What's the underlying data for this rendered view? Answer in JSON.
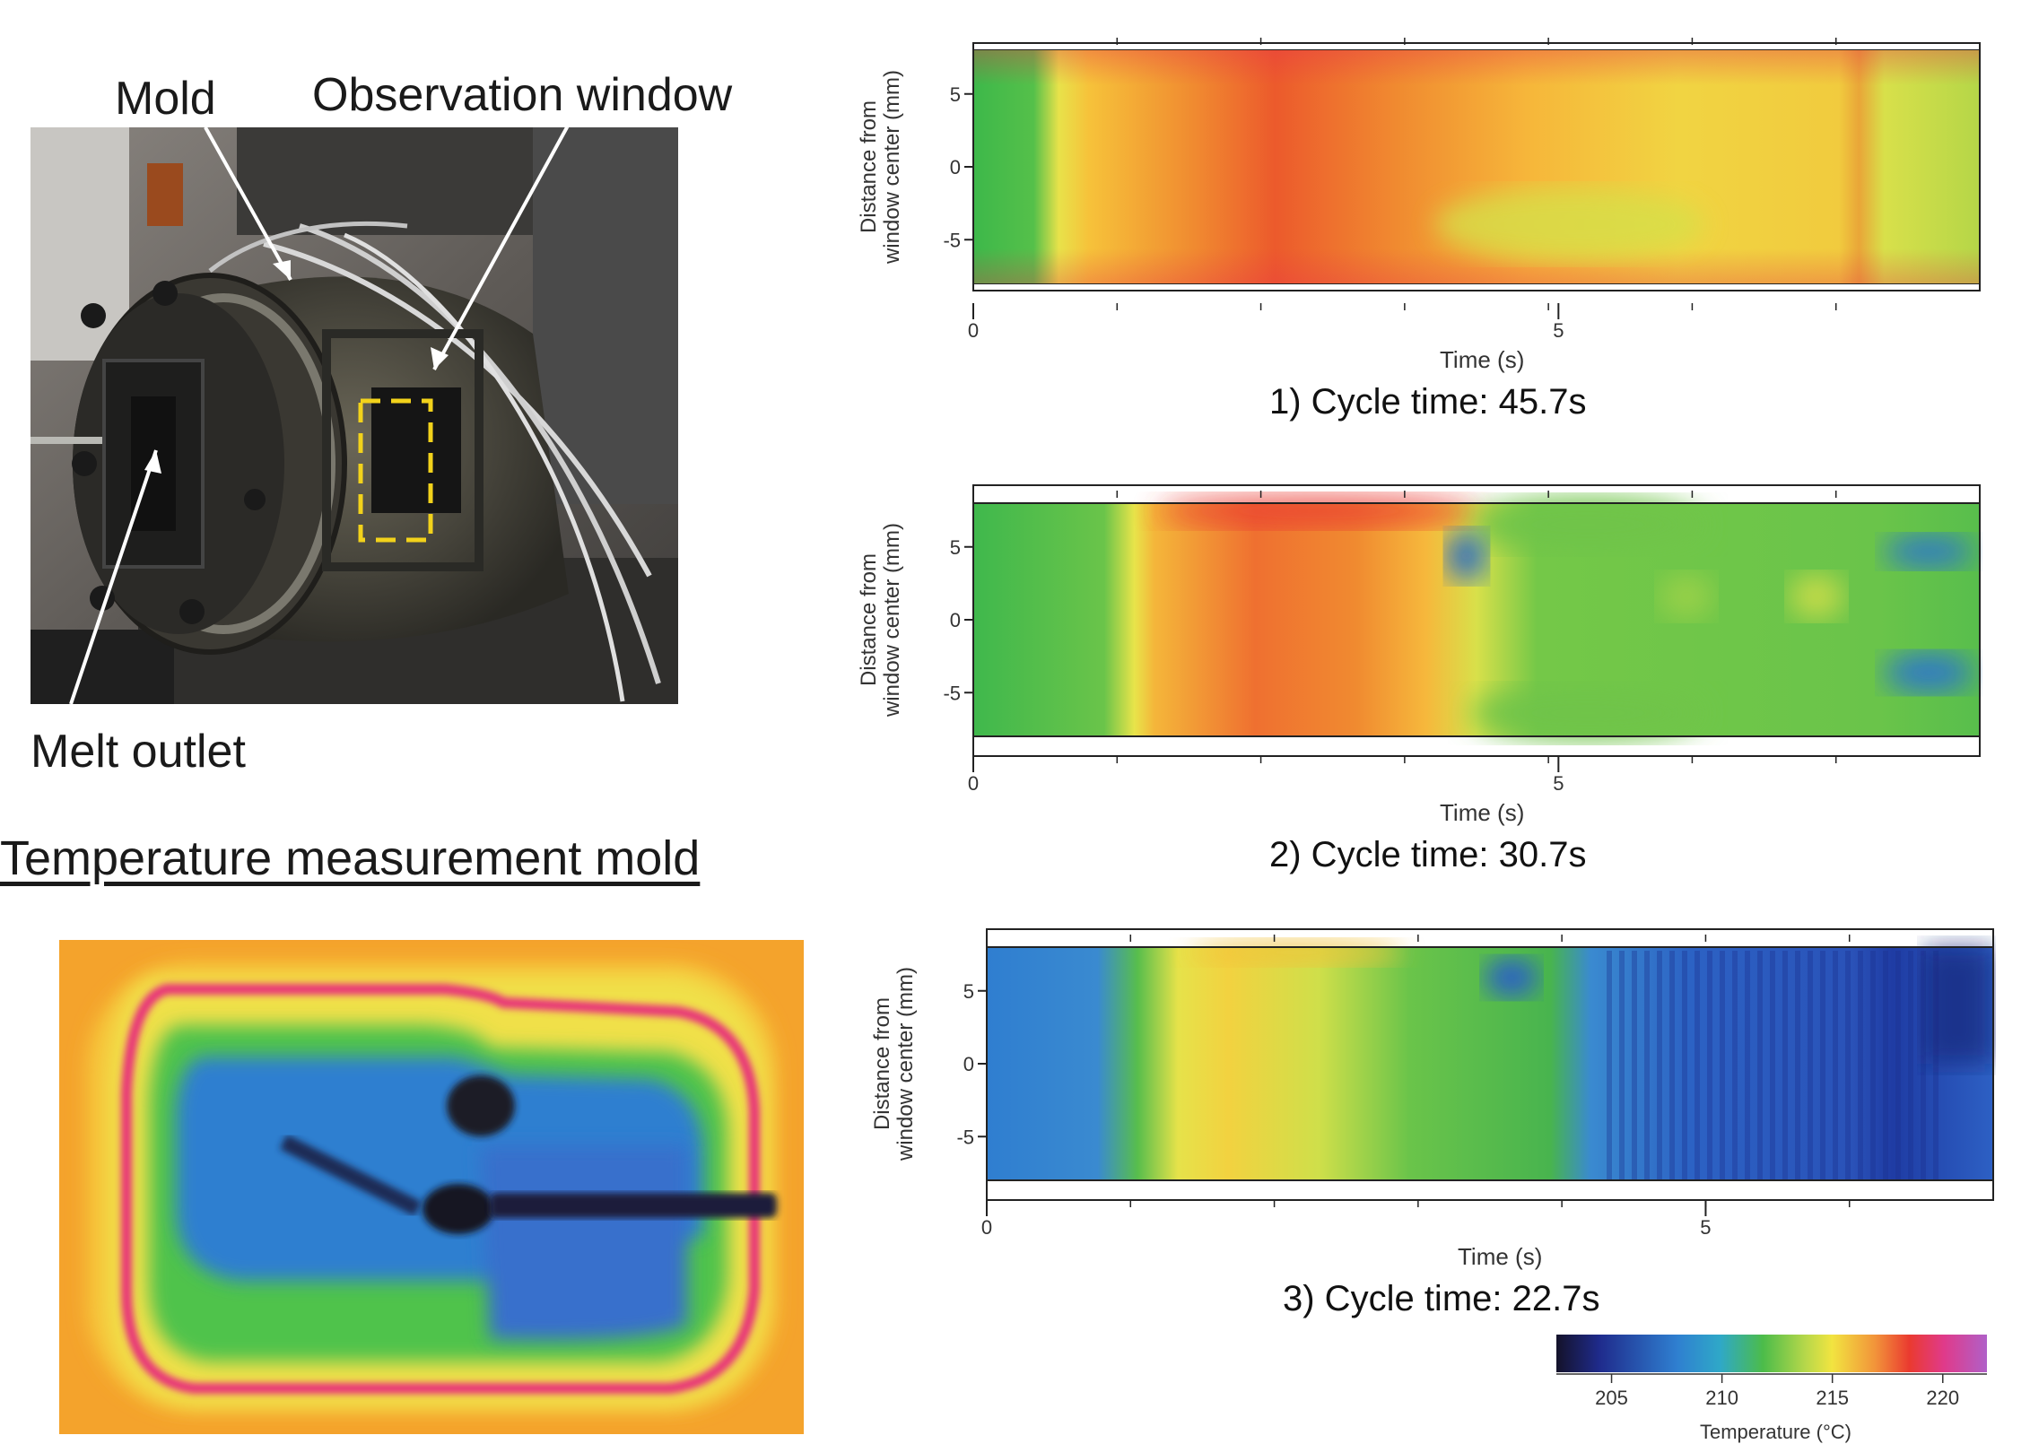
{
  "photo": {
    "labels": {
      "mold": "Mold",
      "observation_window": "Observation window",
      "melt_outlet": "Melt outlet"
    },
    "caption": "Temperature measurement mold",
    "highlight_color": "#f2d21b"
  },
  "chart_data": [
    {
      "type": "heatmap",
      "ylabel_line1": "Distance from",
      "ylabel_line2": "window center (mm)",
      "xlabel": "Time (s)",
      "caption": "1) Cycle time: 45.7s",
      "x_ticks": [
        "0",
        "5"
      ],
      "y_ticks": [
        "5",
        "0",
        "-5"
      ],
      "xlim": [
        0,
        8.6
      ],
      "ylim": [
        -8,
        8
      ]
    },
    {
      "type": "heatmap",
      "ylabel_line1": "Distance from",
      "ylabel_line2": "window center (mm)",
      "xlabel": "Time (s)",
      "caption": "2) Cycle time: 30.7s",
      "x_ticks": [
        "0",
        "5"
      ],
      "y_ticks": [
        "5",
        "0",
        "-5"
      ],
      "xlim": [
        0,
        8.6
      ],
      "ylim": [
        -8,
        8
      ]
    },
    {
      "type": "heatmap",
      "ylabel_line1": "Distance from",
      "ylabel_line2": "window center (mm)",
      "xlabel": "Time (s)",
      "caption": "3) Cycle time: 22.7s",
      "x_ticks": [
        "0",
        "5"
      ],
      "y_ticks": [
        "5",
        "0",
        "-5"
      ],
      "xlim": [
        0,
        7
      ],
      "ylim": [
        -8,
        8
      ]
    }
  ],
  "colorbar": {
    "ticks": [
      "205",
      "210",
      "215",
      "220"
    ],
    "label": "Temperature (°C)",
    "range": [
      202.5,
      222
    ]
  }
}
